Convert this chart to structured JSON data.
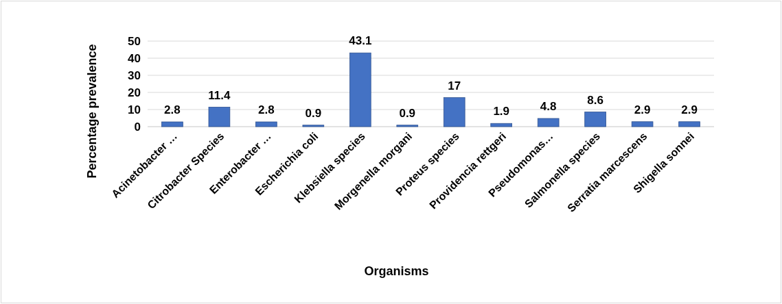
{
  "chart_data": {
    "type": "bar",
    "xlabel": "Organisms",
    "ylabel": "Percentage prevalence",
    "categories": [
      "Acinetobacter …",
      "Citrobacter Species",
      "Enterobacter …",
      "Escherichia coli",
      "Klebsiella species",
      "Morgenella morgani",
      "Proteus species",
      "Providencia rettgeri",
      "Pseudomonas…",
      "Salmonella species",
      "Serratia marcescens",
      "Shigella sonnei"
    ],
    "values": [
      2.8,
      11.4,
      2.8,
      0.9,
      43.1,
      0.9,
      17,
      1.9,
      4.8,
      8.6,
      2.9,
      2.9
    ],
    "color": "#4472c4",
    "ylim": [
      0,
      50
    ],
    "yticks": [
      0,
      10,
      20,
      30,
      40,
      50
    ],
    "grid": "y",
    "data_labels": true
  }
}
